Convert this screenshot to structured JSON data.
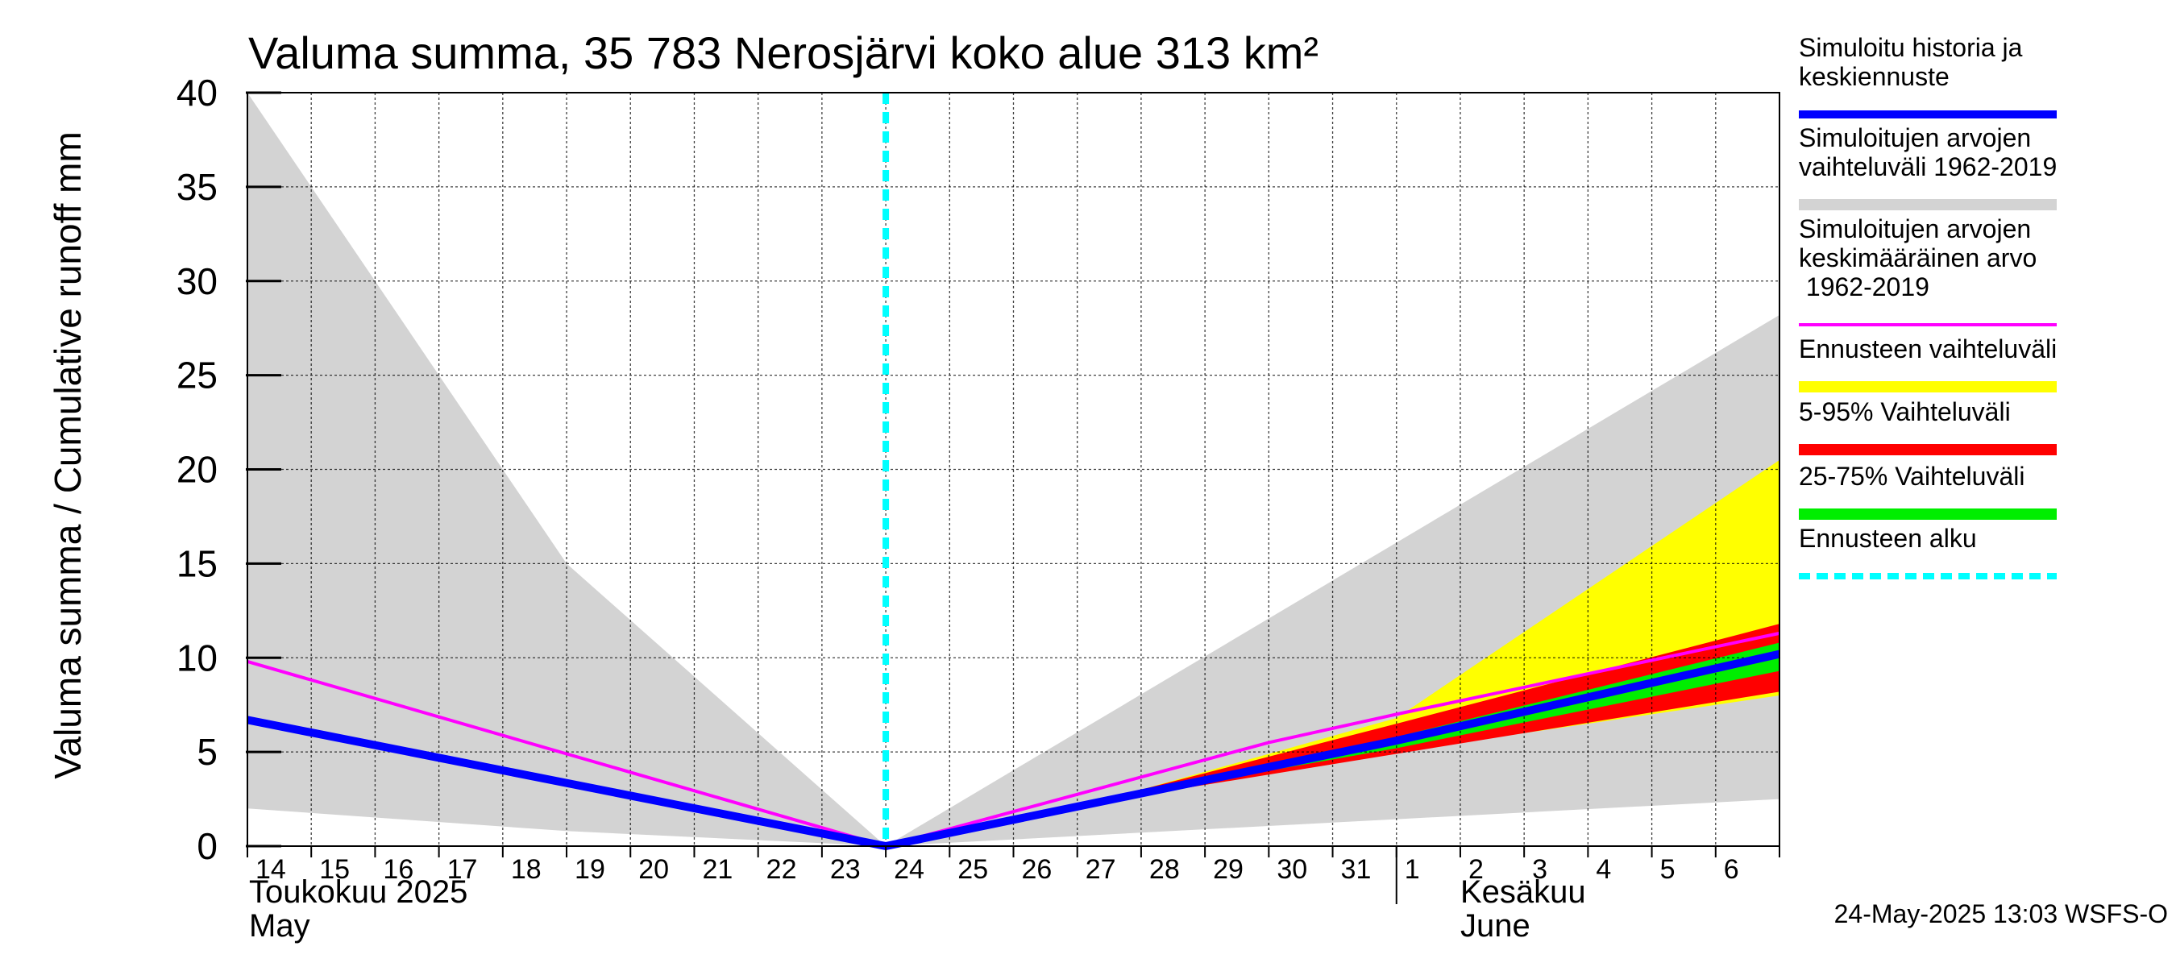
{
  "chart_data": {
    "type": "area",
    "title": "Valuma summa, 35 783 Nerosjärvi koko alue 313 km²",
    "ylabel": "Valuma summa / Cumulative runoff    mm",
    "ylim": [
      0,
      40
    ],
    "yticks": [
      0,
      5,
      10,
      15,
      20,
      25,
      30,
      35,
      40
    ],
    "xlim": [
      "2025-05-14",
      "2025-06-07"
    ],
    "x_tick_labels": [
      "14",
      "15",
      "16",
      "17",
      "18",
      "19",
      "20",
      "21",
      "22",
      "23",
      "24",
      "25",
      "26",
      "27",
      "28",
      "29",
      "30",
      "31",
      "1",
      "2",
      "3",
      "4",
      "5",
      "6"
    ],
    "months": [
      {
        "fi": "Toukokuu  2025",
        "en": "May"
      },
      {
        "fi": "Kesäkuu",
        "en": "June"
      }
    ],
    "forecast_start": "2025-05-24",
    "grid": true,
    "legend_position": "right",
    "legend": [
      {
        "label": "Simuloitu historia ja keskiennuste",
        "color": "#0000ff",
        "style": "line"
      },
      {
        "label": "Simuloitujen arvojen vaihteluväli 1962-2019",
        "color": "#d3d3d3",
        "style": "band"
      },
      {
        "label": "Simuloitujen arvojen keskimääräinen arvo 1962-2019",
        "color": "#ff00ff",
        "style": "line"
      },
      {
        "label": "Ennusteen vaihteluväli",
        "color": "#ffff00",
        "style": "band"
      },
      {
        "label": "5-95% Vaihteluväli",
        "color": "#ff0000",
        "style": "band"
      },
      {
        "label": "25-75% Vaihteluväli",
        "color": "#00ee00",
        "style": "band"
      },
      {
        "label": "Ennusteen alku",
        "color": "#00ffff",
        "style": "dashed"
      }
    ],
    "series": [
      {
        "name": "Simuloitujen arvojen vaihteluväli 1962-2019",
        "type": "band",
        "x": [
          "2025-05-14",
          "2025-05-19",
          "2025-05-24",
          "2025-06-07"
        ],
        "lower": [
          2.0,
          0.8,
          0.0,
          2.5
        ],
        "upper": [
          40.0,
          15.0,
          0.0,
          28.2
        ]
      },
      {
        "name": "Ennusteen vaihteluväli",
        "type": "band",
        "x": [
          "2025-05-24",
          "2025-05-28",
          "2025-06-01",
          "2025-06-07"
        ],
        "lower": [
          0.0,
          2.8,
          5.0,
          8.0
        ],
        "upper": [
          0.0,
          3.0,
          6.8,
          20.5
        ]
      },
      {
        "name": "5-95% Vaihteluväli",
        "type": "band",
        "x": [
          "2025-05-24",
          "2025-05-28",
          "2025-06-01",
          "2025-06-07"
        ],
        "lower": [
          0.0,
          2.7,
          4.9,
          8.2
        ],
        "upper": [
          0.0,
          3.0,
          6.5,
          11.8
        ]
      },
      {
        "name": "25-75% Vaihteluväli",
        "type": "band",
        "x": [
          "2025-05-24",
          "2025-05-28",
          "2025-06-01",
          "2025-06-07"
        ],
        "lower": [
          0.0,
          2.8,
          5.2,
          9.3
        ],
        "upper": [
          0.0,
          2.9,
          5.8,
          10.8
        ]
      },
      {
        "name": "Simuloitujen arvojen keskimääräinen arvo 1962-2019",
        "type": "line",
        "x": [
          "2025-05-14",
          "2025-05-24",
          "2025-05-30",
          "2025-06-01",
          "2025-06-07"
        ],
        "values": [
          9.8,
          0.0,
          5.5,
          7.0,
          11.3
        ]
      },
      {
        "name": "Simuloitu historia ja keskiennuste",
        "type": "line",
        "x": [
          "2025-05-14",
          "2025-05-24",
          "2025-06-01",
          "2025-06-07"
        ],
        "values": [
          6.7,
          0.0,
          5.6,
          10.2
        ]
      }
    ]
  },
  "footer": "24-May-2025 13:03 WSFS-O"
}
